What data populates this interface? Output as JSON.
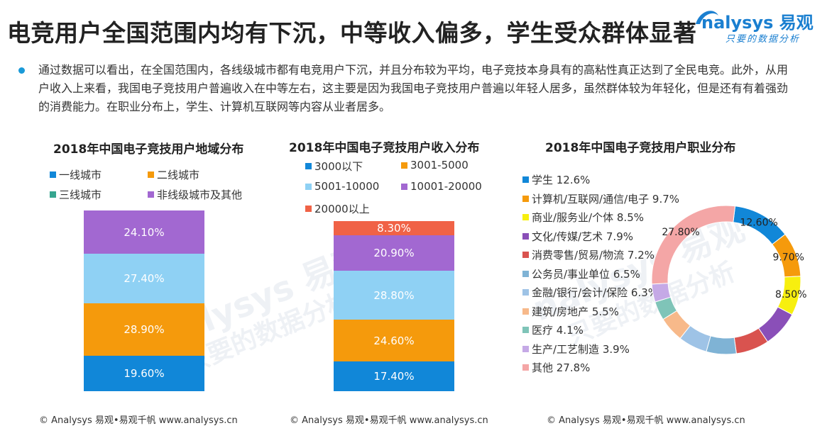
{
  "page": {
    "headline": "电竞用户全国范围内均有下沉，中等收入偏多，学生受众群体显著",
    "summary": "通过数据可以看出，在全国范围内，各线级城市都有电竞用户下沉，并且分布较为平均，电子竞技本身具有的高粘性真正达到了全民电竞。此外，从用户收入上来看，我国电子竞技用户普遍收入在中等左右，这主要是因为我国电子竞技用户普遍以年轻人居多，虽然群体较为年轻化，但是还有有着强劲的消费能力。在职业分布上，学生、计算机互联网等内容从业者居多。",
    "logo_main": "nalysys 易观",
    "logo_sub": "只要的数据分析",
    "footer": "© Analysys 易观•易观千帆   www.analysys.cn",
    "watermark_text": "nalysys 易观",
    "watermark_sub": "只要的数据分析",
    "colors": {
      "blue": "#1187d8",
      "orange": "#f59a0c",
      "teal": "#36a58f",
      "purple": "#a268d1",
      "lightblue": "#8fd1f4",
      "red": "#f06246",
      "yellow": "#f7ef0f",
      "accent": "#1a9ad8"
    }
  },
  "chart_data": [
    {
      "type": "bar",
      "stacked": true,
      "title": "2018年中国电子竞技用户地域分布",
      "legend": [
        {
          "name": "一线城市",
          "color": "#1187d8"
        },
        {
          "name": "二线城市",
          "color": "#f59a0c"
        },
        {
          "name": "三线城市",
          "color": "#36a58f"
        },
        {
          "name": "非线级城市及其他",
          "color": "#a268d1"
        }
      ],
      "segments": [
        {
          "name": "一线城市",
          "value": 19.6,
          "label": "19.60%",
          "color": "#1187d8"
        },
        {
          "name": "二线城市",
          "value": 28.9,
          "label": "28.90%",
          "color": "#f59a0c"
        },
        {
          "name": "三线城市",
          "value": 27.4,
          "label": "27.40%",
          "color": "#8fd1f4"
        },
        {
          "name": "非线级城市及其他",
          "value": 24.1,
          "label": "24.10%",
          "color": "#a268d1"
        }
      ]
    },
    {
      "type": "bar",
      "stacked": true,
      "title": "2018年中国电子竞技用户收入分布",
      "legend": [
        {
          "name": "3000以下",
          "color": "#1187d8"
        },
        {
          "name": "3001-5000",
          "color": "#f59a0c"
        },
        {
          "name": "5001-10000",
          "color": "#8fd1f4"
        },
        {
          "name": "10001-20000",
          "color": "#a268d1"
        },
        {
          "name": "20000以上",
          "color": "#f06246"
        }
      ],
      "segments": [
        {
          "name": "3000以下",
          "value": 17.4,
          "label": "17.40%",
          "color": "#1187d8"
        },
        {
          "name": "3001-5000",
          "value": 24.6,
          "label": "24.60%",
          "color": "#f59a0c"
        },
        {
          "name": "5001-10000",
          "value": 28.8,
          "label": "28.80%",
          "color": "#8fd1f4"
        },
        {
          "name": "10001-20000",
          "value": 20.9,
          "label": "20.90%",
          "color": "#a268d1"
        },
        {
          "name": "20000以上",
          "value": 8.3,
          "label": "8.30%",
          "color": "#f06246"
        }
      ]
    },
    {
      "type": "pie",
      "donut": true,
      "title": "2018年中国电子竞技用户职业分布",
      "slices": [
        {
          "name": "学生",
          "value": 12.6,
          "legend": "学生 12.6%",
          "label": "12.60%",
          "color": "#1187d8"
        },
        {
          "name": "计算机/互联网/通信/电子",
          "value": 9.7,
          "legend": "计算机/互联网/通信/电子  9.7%",
          "label": "9.70%",
          "color": "#f59a0c"
        },
        {
          "name": "商业/服务业/个体",
          "value": 8.5,
          "legend": "商业/服务业/个体 8.5%",
          "label": "8.50%",
          "color": "#f7ef0f"
        },
        {
          "name": "文化/传媒/艺术",
          "value": 7.9,
          "legend": "文化/传媒/艺术 7.9%",
          "label": "",
          "color": "#8a4fb8"
        },
        {
          "name": "消费零售/贸易/物流",
          "value": 7.2,
          "legend": "消费零售/贸易/物流 7.2%",
          "label": "",
          "color": "#d9534f"
        },
        {
          "name": "公务员/事业单位",
          "value": 6.5,
          "legend": "公务员/事业单位 6.5%",
          "label": "",
          "color": "#7fb3d5"
        },
        {
          "name": "金融/银行/会计/保险",
          "value": 6.3,
          "legend": "金融/银行/会计/保险 6.3%",
          "label": "",
          "color": "#9ec3e6"
        },
        {
          "name": "建筑/房地产",
          "value": 5.5,
          "legend": "建筑/房地产 5.5%",
          "label": "",
          "color": "#f7b98a"
        },
        {
          "name": "医疗",
          "value": 4.1,
          "legend": "医疗  4.1%",
          "label": "",
          "color": "#7fc4b8"
        },
        {
          "name": "生产/工艺制造",
          "value": 3.9,
          "legend": "生产/工艺制造 3.9%",
          "label": "",
          "color": "#c5a9e6"
        },
        {
          "name": "其他",
          "value": 27.8,
          "legend": "其他 27.8%",
          "label": "27.80%",
          "color": "#f4a6a6"
        }
      ]
    }
  ]
}
